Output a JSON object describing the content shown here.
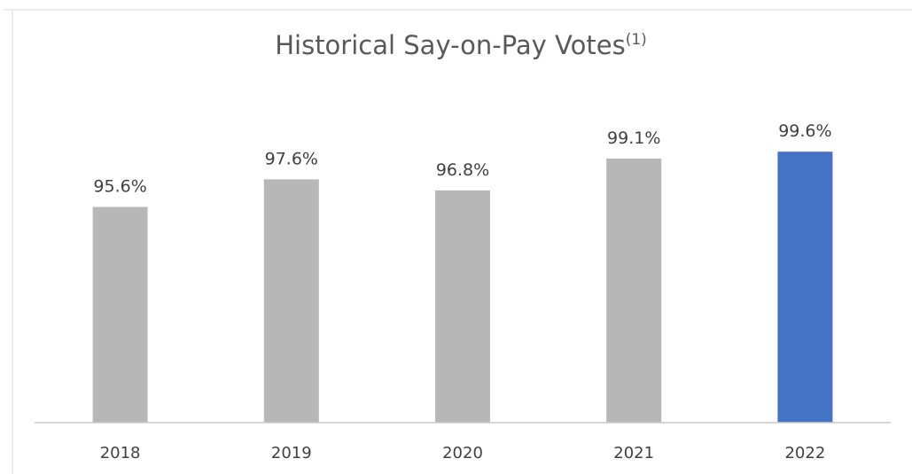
{
  "chart_data": {
    "type": "bar",
    "title": "Historical Say-on-Pay Votes",
    "title_superscript": "(1)",
    "xlabel": "",
    "ylabel": "",
    "categories": [
      "2018",
      "2019",
      "2020",
      "2021",
      "2022"
    ],
    "values": [
      95.6,
      97.6,
      96.8,
      99.1,
      99.6
    ],
    "value_labels": [
      "95.6%",
      "97.6%",
      "96.8%",
      "99.1%",
      "99.6%"
    ],
    "ylim": [
      80,
      100
    ],
    "grid": false,
    "legend": "none",
    "colors": {
      "default_bar": "#b7b7b7",
      "highlight_bar": "#4472c4"
    },
    "highlight_category": "2022"
  }
}
